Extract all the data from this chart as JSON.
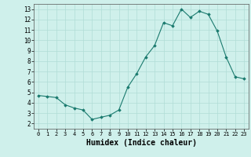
{
  "x": [
    0,
    1,
    2,
    3,
    4,
    5,
    6,
    7,
    8,
    9,
    10,
    11,
    12,
    13,
    14,
    15,
    16,
    17,
    18,
    19,
    20,
    21,
    22,
    23
  ],
  "y": [
    4.7,
    4.6,
    4.5,
    3.8,
    3.5,
    3.3,
    2.4,
    2.6,
    2.8,
    3.3,
    5.5,
    6.8,
    8.4,
    9.5,
    11.7,
    11.4,
    13.0,
    12.2,
    12.8,
    12.5,
    10.9,
    8.4,
    6.5,
    6.3
  ],
  "line_color": "#1a7a6e",
  "marker": "D",
  "marker_size": 1.8,
  "bg_color": "#cff0eb",
  "grid_color": "#b0ddd6",
  "xlabel": "Humidex (Indice chaleur)",
  "xlabel_fontsize": 7,
  "xlim": [
    -0.5,
    23.5
  ],
  "ylim": [
    1.5,
    13.5
  ],
  "yticks": [
    2,
    3,
    4,
    5,
    6,
    7,
    8,
    9,
    10,
    11,
    12,
    13
  ],
  "xticks": [
    0,
    1,
    2,
    3,
    4,
    5,
    6,
    7,
    8,
    9,
    10,
    11,
    12,
    13,
    14,
    15,
    16,
    17,
    18,
    19,
    20,
    21,
    22,
    23
  ]
}
